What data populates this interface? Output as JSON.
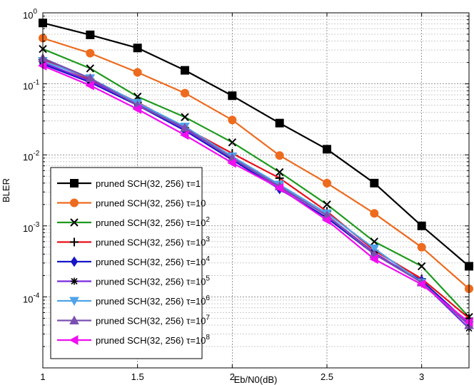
{
  "chart_data": {
    "type": "line",
    "xlabel": "Eb/N0(dB)",
    "ylabel": "BLER",
    "x_scale": "linear",
    "y_scale": "log",
    "xlim": [
      1,
      3.25
    ],
    "ylim": [
      1e-05,
      1
    ],
    "grid": true,
    "legend_position": "bottom-left",
    "x_ticks": [
      {
        "value": 1,
        "label": "1"
      },
      {
        "value": 1.5,
        "label": "1.5"
      },
      {
        "value": 2,
        "label": "2"
      },
      {
        "value": 2.5,
        "label": "2.5"
      },
      {
        "value": 3,
        "label": "3"
      }
    ],
    "y_ticks": [
      {
        "value": 1,
        "base": "10",
        "exp": "0"
      },
      {
        "value": 0.1,
        "base": "10",
        "exp": "-1"
      },
      {
        "value": 0.01,
        "base": "10",
        "exp": "-2"
      },
      {
        "value": 0.001,
        "base": "10",
        "exp": "-3"
      },
      {
        "value": 0.0001,
        "base": "10",
        "exp": "-4"
      }
    ],
    "x": [
      1,
      1.25,
      1.5,
      1.75,
      2,
      2.25,
      2.5,
      2.75,
      3,
      3.25
    ],
    "series": [
      {
        "name": "pruned SCH(32, 256) τ=1",
        "label_main": "pruned SCH(32, 256) τ=1",
        "label_sup": "",
        "color": "#000000",
        "marker": "square",
        "values": [
          0.72,
          0.49,
          0.32,
          0.155,
          0.068,
          0.028,
          0.012,
          0.004,
          0.001,
          0.00027
        ]
      },
      {
        "name": "pruned SCH(32, 256) τ=10",
        "label_main": "pruned SCH(32, 256) τ=10",
        "label_sup": "",
        "color": "#ED6B1F",
        "marker": "circle",
        "values": [
          0.44,
          0.27,
          0.145,
          0.074,
          0.031,
          0.0098,
          0.004,
          0.0015,
          0.0005,
          0.00013
        ]
      },
      {
        "name": "pruned SCH(32, 256) τ=10^2",
        "label_main": "pruned SCH(32, 256) τ=10",
        "label_sup": "2",
        "color": "#1F9A1F",
        "marker": "x",
        "values": [
          0.31,
          0.165,
          0.066,
          0.034,
          0.015,
          0.0057,
          0.002,
          0.0006,
          0.00027,
          5.2e-05
        ]
      },
      {
        "name": "pruned SCH(32, 256) τ=10^3",
        "label_main": "pruned SCH(32, 256) τ=10",
        "label_sup": "3",
        "color": "#E8101A",
        "marker": "plus",
        "values": [
          0.22,
          0.115,
          0.055,
          0.024,
          0.0105,
          0.0047,
          0.0016,
          0.00045,
          0.00018,
          5e-05
        ]
      },
      {
        "name": "pruned SCH(32, 256) τ=10^4",
        "label_main": "pruned SCH(32, 256) τ=10",
        "label_sup": "4",
        "color": "#1616C8",
        "marker": "diamond",
        "values": [
          0.19,
          0.105,
          0.05,
          0.022,
          0.0085,
          0.0033,
          0.0013,
          0.0004,
          0.00017,
          4.2e-05
        ]
      },
      {
        "name": "pruned SCH(32, 256) τ=10^5",
        "label_main": "pruned SCH(32, 256) τ=10",
        "label_sup": "5",
        "color": "#7A2BE0",
        "marker": "star",
        "values": [
          0.2,
          0.11,
          0.052,
          0.023,
          0.009,
          0.0035,
          0.0014,
          0.00042,
          0.00016,
          3.6e-05
        ]
      },
      {
        "name": "pruned SCH(32, 256) τ=10^6",
        "label_main": "pruned SCH(32, 256) τ=10",
        "label_sup": "6",
        "color": "#4FA3E8",
        "marker": "triangle-down",
        "values": [
          0.21,
          0.12,
          0.054,
          0.025,
          0.0095,
          0.0038,
          0.0015,
          0.00048,
          0.00016,
          4e-05
        ]
      },
      {
        "name": "pruned SCH(32, 256) τ=10^7",
        "label_main": "pruned SCH(32, 256) τ=10",
        "label_sup": "7",
        "color": "#7B4FB0",
        "marker": "triangle-up",
        "values": [
          0.23,
          0.12,
          0.05,
          0.024,
          0.009,
          0.0036,
          0.0014,
          0.0004,
          0.00016,
          4e-05
        ]
      },
      {
        "name": "pruned SCH(32, 256) τ=10^8",
        "label_main": "pruned SCH(32, 256) τ=10",
        "label_sup": "8",
        "color": "#F00FF0",
        "marker": "triangle-left",
        "values": [
          0.18,
          0.095,
          0.044,
          0.019,
          0.0077,
          0.0034,
          0.0012,
          0.00034,
          0.00015,
          4.4e-05
        ]
      }
    ]
  }
}
